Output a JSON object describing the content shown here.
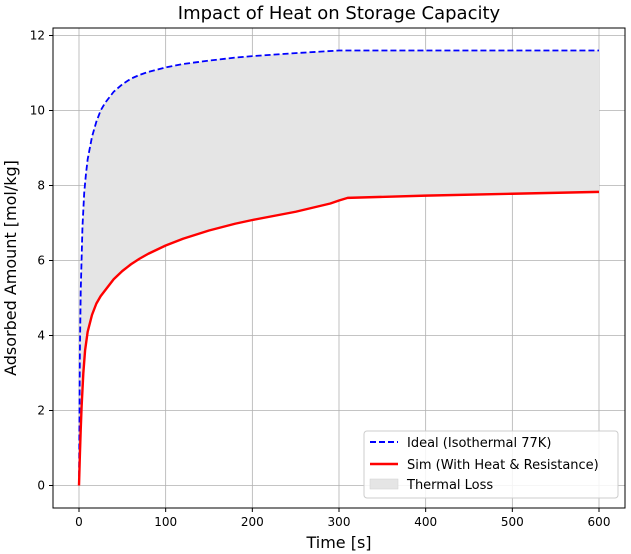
{
  "chart_data": {
    "type": "line",
    "title": "Impact of Heat on Storage Capacity",
    "xlabel": "Time [s]",
    "ylabel": "Adsorbed Amount [mol/kg]",
    "xlim": [
      -30,
      630
    ],
    "ylim": [
      -0.6,
      12.2
    ],
    "xticks": [
      0,
      100,
      200,
      300,
      400,
      500,
      600
    ],
    "yticks": [
      0,
      2,
      4,
      6,
      8,
      10,
      12
    ],
    "grid": true,
    "legend_position": "bottom-right",
    "series": [
      {
        "name": "Ideal (Isothermal 77K)",
        "color": "#0000ff",
        "style": "dashed",
        "x": [
          0,
          1,
          2,
          4,
          6,
          8,
          10,
          15,
          20,
          25,
          30,
          40,
          50,
          60,
          70,
          80,
          100,
          120,
          150,
          180,
          200,
          250,
          300,
          350,
          400,
          500,
          600
        ],
        "y": [
          0,
          3.5,
          5.2,
          6.9,
          7.8,
          8.3,
          8.7,
          9.3,
          9.7,
          10.0,
          10.2,
          10.5,
          10.7,
          10.85,
          10.95,
          11.03,
          11.15,
          11.24,
          11.33,
          11.41,
          11.45,
          11.53,
          11.6,
          11.6,
          11.6,
          11.6,
          11.6
        ]
      },
      {
        "name": "Sim (With Heat & Resistance)",
        "color": "#ff0000",
        "style": "solid",
        "x": [
          0,
          1,
          2,
          3,
          5,
          7,
          10,
          15,
          20,
          25,
          30,
          40,
          50,
          60,
          70,
          80,
          100,
          120,
          150,
          180,
          200,
          250,
          290,
          300,
          310,
          400,
          500,
          600
        ],
        "y": [
          0,
          0.8,
          1.5,
          2.1,
          3.0,
          3.6,
          4.1,
          4.55,
          4.85,
          5.05,
          5.2,
          5.5,
          5.72,
          5.9,
          6.05,
          6.18,
          6.4,
          6.58,
          6.8,
          6.98,
          7.08,
          7.3,
          7.52,
          7.6,
          7.67,
          7.73,
          7.78,
          7.83
        ]
      }
    ],
    "fill_label": "Thermal Loss",
    "fill_color": "#e5e5e5"
  }
}
